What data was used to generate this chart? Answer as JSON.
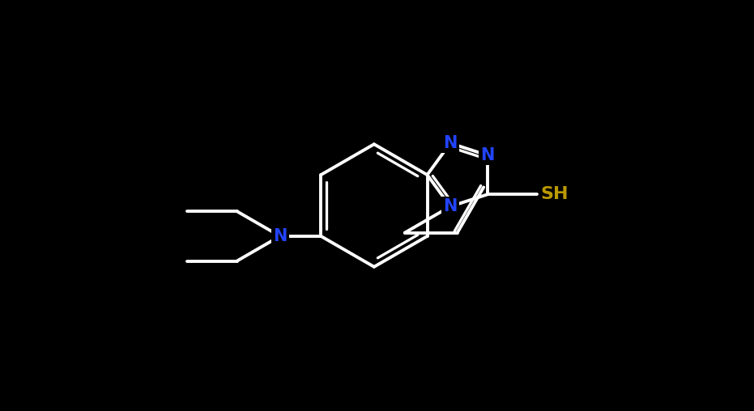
{
  "background_color": "#000000",
  "bond_color": "#ffffff",
  "N_color": "#2244ff",
  "S_color": "#bb9900",
  "line_width": 2.8,
  "font_size_atom": 15,
  "fig_width": 9.31,
  "fig_height": 5.08,
  "dpi": 100,
  "xlim": [
    -1.0,
    9.5
  ],
  "ylim": [
    -1.5,
    5.5
  ]
}
